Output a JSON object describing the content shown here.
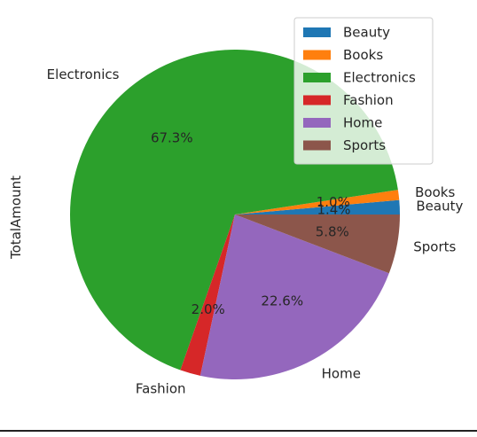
{
  "chart_data": {
    "type": "pie",
    "ylabel": "TotalAmount",
    "categories": [
      "Beauty",
      "Books",
      "Electronics",
      "Fashion",
      "Home",
      "Sports"
    ],
    "values": [
      1.4,
      1.0,
      67.3,
      2.0,
      22.6,
      5.8
    ],
    "pct_labels": [
      "1.4%",
      "1.0%",
      "67.3%",
      "2.0%",
      "22.6%",
      "5.8%"
    ],
    "colors": [
      "#1f77b4",
      "#ff7f0e",
      "#2ca02c",
      "#d62728",
      "#9467bd",
      "#8c564b"
    ],
    "start_angle_deg": 0,
    "direction": "counterclockwise",
    "legend": {
      "position": "upper-right",
      "entries": [
        "Beauty",
        "Books",
        "Electronics",
        "Fashion",
        "Home",
        "Sports"
      ]
    }
  }
}
